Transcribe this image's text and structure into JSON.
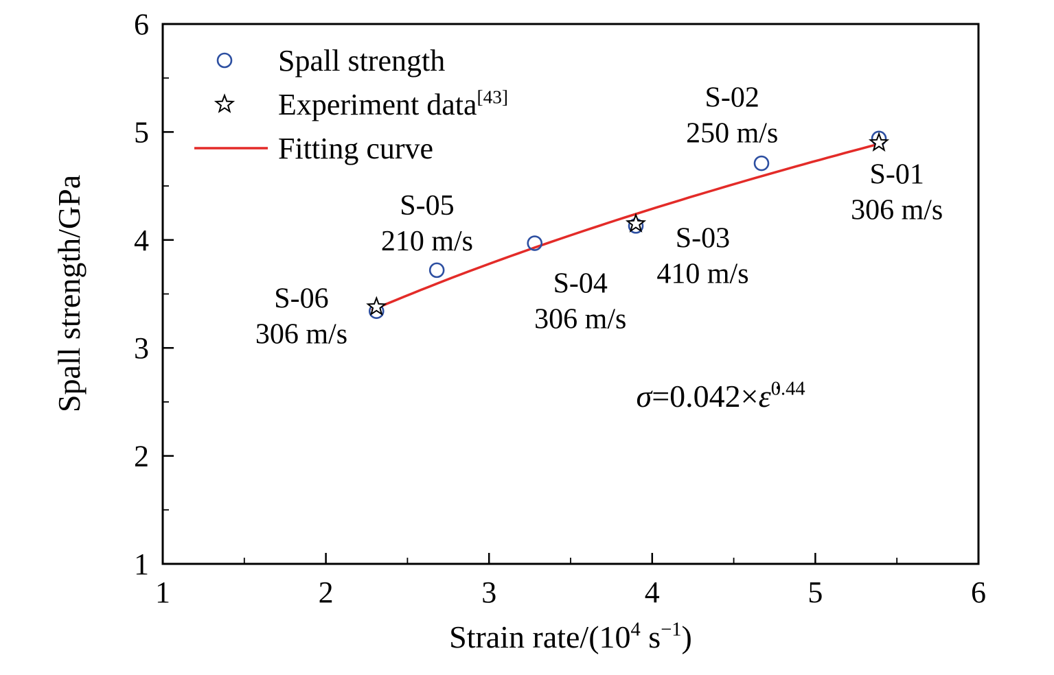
{
  "chart_data": {
    "type": "scatter",
    "title": "",
    "xlabel": "Strain rate/(10⁴ s⁻¹)",
    "ylabel": "Spall strength/GPa",
    "xlabel_parts": [
      {
        "t": "Strain rate/(10"
      },
      {
        "t": "4",
        "sup": true
      },
      {
        "t": " s"
      },
      {
        "t": "−1",
        "sup": true
      },
      {
        "t": ")"
      }
    ],
    "xlim": [
      1,
      6
    ],
    "ylim": [
      1,
      6
    ],
    "x_ticks": [
      1,
      2,
      3,
      4,
      5,
      6
    ],
    "y_ticks": [
      1,
      2,
      3,
      4,
      5,
      6
    ],
    "grid": false,
    "colors": {
      "spall_points": "#2d4fa1",
      "experiment_points": "#000000",
      "fit_curve": "#e32b28",
      "axis": "#000000",
      "text": "#000000"
    },
    "series": [
      {
        "name": "Spall strength",
        "marker": "circle",
        "points": [
          [
            2.31,
            3.34
          ],
          [
            2.68,
            3.72
          ],
          [
            3.28,
            3.97
          ],
          [
            3.9,
            4.13
          ],
          [
            4.67,
            4.71
          ],
          [
            5.39,
            4.94
          ]
        ]
      },
      {
        "name": "Experiment data[43]",
        "marker": "star",
        "points": [
          [
            2.31,
            3.38
          ],
          [
            3.9,
            4.15
          ],
          [
            5.39,
            4.9
          ]
        ]
      },
      {
        "name": "Fitting curve",
        "marker": "line",
        "fit": {
          "a": 2.33,
          "b": 0.44,
          "x_start": 2.28,
          "x_end": 5.41
        },
        "displayed_formula": "σ=0.042×ε̇^0.44"
      }
    ],
    "legend": {
      "position": "top-left",
      "items": [
        {
          "marker": "circle",
          "parts": [
            {
              "t": "Spall strength"
            }
          ]
        },
        {
          "marker": "star",
          "parts": [
            {
              "t": "Experiment data"
            },
            {
              "t": "[43]",
              "sup": true
            }
          ]
        },
        {
          "marker": "line",
          "parts": [
            {
              "t": "Fitting curve"
            }
          ]
        }
      ]
    },
    "point_labels": [
      {
        "lines": [
          "S-06",
          "306 m/s"
        ],
        "x": 1.85,
        "y": 3.31
      },
      {
        "lines": [
          "S-05",
          "210 m/s"
        ],
        "x": 2.62,
        "y": 4.17
      },
      {
        "lines": [
          "S-04",
          "306 m/s"
        ],
        "x": 3.56,
        "y": 3.45
      },
      {
        "lines": [
          "S-03",
          "410 m/s"
        ],
        "x": 4.31,
        "y": 3.87
      },
      {
        "lines": [
          "S-02",
          "250 m/s"
        ],
        "x": 4.49,
        "y": 5.17
      },
      {
        "lines": [
          "S-01",
          "306 m/s"
        ],
        "x": 5.5,
        "y": 4.46
      }
    ],
    "equation": {
      "x": 4.42,
      "y": 2.55,
      "parts": [
        {
          "t": "σ",
          "italic": true
        },
        {
          "t": "=0.042×"
        },
        {
          "t": "ε̇",
          "italic": true
        },
        {
          "t": "0.44",
          "sup": true
        }
      ]
    }
  }
}
